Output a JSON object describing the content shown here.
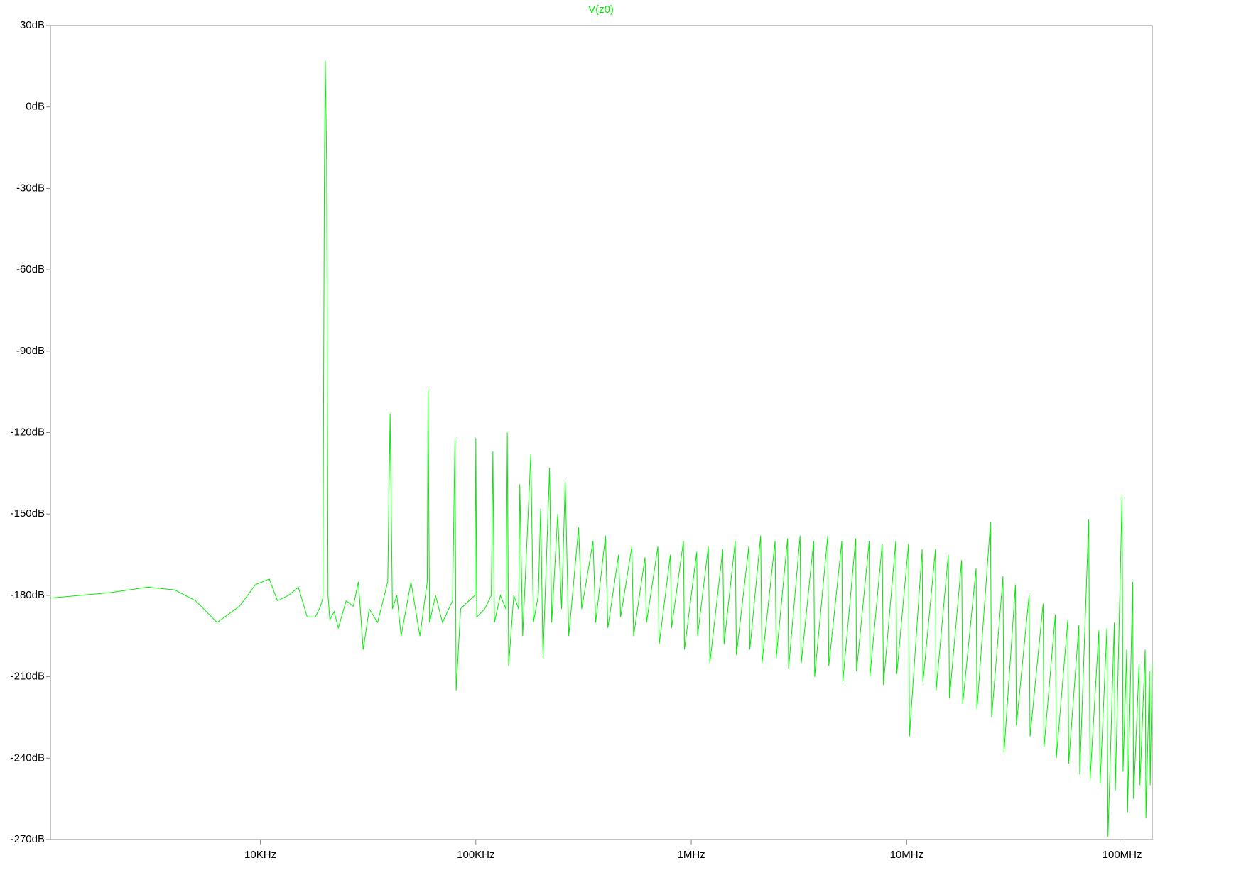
{
  "chart_data": {
    "type": "line",
    "xscale": "log",
    "series": [
      {
        "name": "V(z0)",
        "color": "#00ee00",
        "values": [
          -181,
          -179,
          -177,
          -178,
          -182,
          -190,
          -184,
          -176,
          -174,
          -182,
          -180,
          -177,
          -188,
          -188,
          -184,
          -181,
          -30,
          17,
          -20,
          -180,
          -189,
          -186,
          -192,
          -182,
          -184,
          -175,
          -200,
          -185,
          -190,
          -175,
          -113,
          -185,
          -180,
          -195,
          -175,
          -195,
          -175,
          -104,
          -190,
          -180,
          -190,
          -182,
          -122,
          -215,
          -185,
          -183,
          -180,
          -122,
          -188,
          -185,
          -180,
          -127,
          -190,
          -180,
          -185,
          -120,
          -206,
          -180,
          -185,
          -139,
          -195,
          -128,
          -190,
          -180,
          -148,
          -203,
          -133,
          -190,
          -150,
          -185,
          -138,
          -195,
          -155,
          -185,
          -160,
          -190,
          -158,
          -192,
          -165,
          -188,
          -162,
          -195,
          -166,
          -190,
          -162,
          -198,
          -165,
          -192,
          -160,
          -200,
          -164,
          -195,
          -162,
          -205,
          -163,
          -198,
          -160,
          -202,
          -162,
          -200,
          -158,
          -205,
          -160,
          -203,
          -159,
          -207,
          -158,
          -205,
          -160,
          -210,
          -158,
          -206,
          -160,
          -212,
          -159,
          -208,
          -160,
          -210,
          -161,
          -213,
          -160,
          -209,
          -161,
          -232,
          -163,
          -212,
          -163,
          -215,
          -165,
          -218,
          -167,
          -220,
          -170,
          -222,
          -153,
          -225,
          -173,
          -238,
          -176,
          -228,
          -180,
          -232,
          -183,
          -236,
          -187,
          -240,
          -189,
          -242,
          -191,
          -246,
          -152,
          -248,
          -193,
          -250,
          -192,
          -269,
          -190,
          -252,
          -143,
          -245,
          -200,
          -260,
          -175,
          -255,
          -205,
          -250,
          -200,
          -262,
          -208,
          -250,
          -205
        ]
      }
    ],
    "x": [
      1060,
      2000,
      3000,
      4000,
      5000,
      6300,
      8000,
      9500,
      11000,
      12000,
      13500,
      15000,
      16500,
      18000,
      19000,
      19500,
      19800,
      20000,
      20300,
      20600,
      21000,
      22000,
      23000,
      25000,
      27000,
      28500,
      30000,
      32000,
      35000,
      39000,
      40000,
      41000,
      43000,
      45000,
      50000,
      55000,
      59500,
      60000,
      61000,
      65000,
      70000,
      78000,
      80000,
      81000,
      85000,
      90000,
      99000,
      100000,
      101000,
      110000,
      118000,
      120000,
      122000,
      130000,
      138000,
      140000,
      142000,
      150000,
      158000,
      160000,
      165000,
      180000,
      185000,
      195000,
      200000,
      205000,
      220000,
      225000,
      240000,
      250000,
      260000,
      270000,
      300000,
      310000,
      350000,
      360000,
      400000,
      410000,
      460000,
      470000,
      530000,
      540000,
      610000,
      620000,
      700000,
      710000,
      800000,
      810000,
      920000,
      930000,
      1060000,
      1070000,
      1200000,
      1220000,
      1400000,
      1420000,
      1600000,
      1620000,
      1850000,
      1870000,
      2100000,
      2130000,
      2450000,
      2480000,
      2800000,
      2830000,
      3200000,
      3240000,
      3700000,
      3740000,
      4300000,
      4350000,
      5000000,
      5050000,
      5800000,
      5850000,
      6700000,
      6750000,
      7700000,
      7800000,
      8900000,
      9000000,
      10200000,
      10300000,
      11800000,
      11900000,
      13600000,
      13700000,
      15600000,
      15800000,
      18000000,
      18200000,
      21000000,
      21200000,
      24500000,
      24800000,
      28000000,
      28300000,
      32000000,
      32300000,
      37000000,
      37400000,
      43000000,
      43400000,
      49000000,
      49500000,
      56000000,
      56500000,
      63000000,
      63600000,
      70000000,
      71000000,
      78000000,
      79000000,
      85000000,
      86000000,
      92000000,
      93000000,
      100000000,
      101000000,
      105000000,
      106000000,
      112000000,
      113000000,
      120000000,
      121000000,
      128000000,
      129000000,
      134000000,
      135000000,
      138000000
    ],
    "xlim": [
      1060,
      138000000
    ],
    "xticks": [
      {
        "value": 10000,
        "label": "10KHz"
      },
      {
        "value": 100000,
        "label": "100KHz"
      },
      {
        "value": 1000000,
        "label": "1MHz"
      },
      {
        "value": 10000000,
        "label": "10MHz"
      },
      {
        "value": 100000000,
        "label": "100MHz"
      }
    ],
    "ylim": [
      -270,
      30
    ],
    "yticks": [
      {
        "value": 30,
        "label": "30dB"
      },
      {
        "value": 0,
        "label": "0dB"
      },
      {
        "value": -30,
        "label": "-30dB"
      },
      {
        "value": -60,
        "label": "-60dB"
      },
      {
        "value": -90,
        "label": "-90dB"
      },
      {
        "value": -120,
        "label": "-120dB"
      },
      {
        "value": -150,
        "label": "-150dB"
      },
      {
        "value": -180,
        "label": "-180dB"
      },
      {
        "value": -210,
        "label": "-210dB"
      },
      {
        "value": -240,
        "label": "-240dB"
      },
      {
        "value": -270,
        "label": "-270dB"
      }
    ],
    "grid": false
  }
}
